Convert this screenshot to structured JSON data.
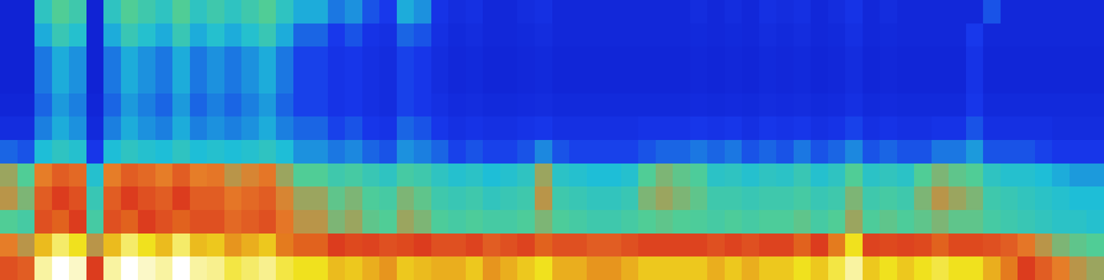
{
  "chart_data": {
    "type": "heatmap",
    "tick_labels": false,
    "color_range": [
      0,
      100
    ],
    "cells": [
      [
        12,
        12,
        45,
        55,
        50,
        12,
        45,
        55,
        50,
        45,
        55,
        45,
        50,
        45,
        50,
        55,
        45,
        38,
        38,
        32,
        35,
        28,
        25,
        38,
        35,
        22,
        18,
        20,
        15,
        15,
        18,
        20,
        15,
        15,
        15,
        15,
        15,
        15,
        15,
        15,
        18,
        15,
        18,
        15,
        20,
        18,
        20,
        15,
        18,
        22,
        15,
        18,
        15,
        15,
        15,
        15,
        15,
        28,
        15,
        15,
        15,
        15,
        15,
        15
      ],
      [
        12,
        12,
        38,
        48,
        42,
        12,
        38,
        48,
        42,
        38,
        48,
        38,
        42,
        38,
        42,
        48,
        38,
        30,
        30,
        25,
        28,
        22,
        20,
        30,
        28,
        20,
        16,
        18,
        15,
        15,
        16,
        18,
        15,
        15,
        15,
        15,
        15,
        15,
        15,
        15,
        16,
        15,
        16,
        15,
        18,
        16,
        18,
        15,
        16,
        20,
        15,
        16,
        15,
        15,
        15,
        15,
        25,
        15,
        15,
        15,
        15,
        15,
        15,
        15
      ],
      [
        12,
        12,
        32,
        38,
        35,
        12,
        32,
        38,
        35,
        32,
        38,
        32,
        35,
        32,
        35,
        38,
        32,
        26,
        26,
        22,
        24,
        20,
        18,
        26,
        24,
        18,
        15,
        16,
        14,
        14,
        15,
        16,
        14,
        14,
        14,
        14,
        14,
        14,
        14,
        14,
        15,
        14,
        15,
        14,
        16,
        15,
        16,
        14,
        15,
        18,
        14,
        15,
        14,
        14,
        14,
        14,
        22,
        14,
        14,
        14,
        14,
        14,
        14,
        14
      ],
      [
        12,
        12,
        32,
        38,
        35,
        12,
        32,
        38,
        35,
        32,
        38,
        32,
        35,
        32,
        35,
        38,
        32,
        26,
        26,
        22,
        24,
        20,
        18,
        26,
        24,
        18,
        15,
        16,
        14,
        14,
        15,
        16,
        14,
        14,
        14,
        14,
        14,
        14,
        14,
        14,
        15,
        14,
        15,
        14,
        16,
        15,
        16,
        14,
        15,
        18,
        14,
        15,
        14,
        14,
        14,
        14,
        22,
        14,
        14,
        14,
        14,
        14,
        14,
        14
      ],
      [
        14,
        14,
        30,
        36,
        33,
        14,
        30,
        36,
        33,
        30,
        36,
        30,
        33,
        30,
        33,
        36,
        30,
        26,
        26,
        22,
        24,
        20,
        18,
        26,
        24,
        20,
        17,
        18,
        16,
        16,
        17,
        18,
        16,
        16,
        16,
        16,
        16,
        16,
        16,
        16,
        17,
        16,
        17,
        16,
        18,
        17,
        18,
        16,
        17,
        20,
        16,
        17,
        16,
        16,
        16,
        16,
        24,
        16,
        16,
        16,
        16,
        16,
        16,
        16
      ],
      [
        18,
        18,
        33,
        38,
        35,
        16,
        33,
        38,
        35,
        33,
        38,
        33,
        35,
        33,
        35,
        38,
        33,
        30,
        30,
        26,
        28,
        24,
        22,
        30,
        28,
        24,
        20,
        22,
        20,
        20,
        22,
        24,
        20,
        20,
        20,
        20,
        20,
        22,
        22,
        22,
        24,
        22,
        24,
        20,
        24,
        22,
        24,
        20,
        22,
        26,
        20,
        22,
        20,
        20,
        22,
        22,
        28,
        20,
        20,
        20,
        20,
        18,
        18,
        18
      ],
      [
        30,
        28,
        40,
        45,
        42,
        24,
        40,
        45,
        42,
        40,
        45,
        40,
        42,
        40,
        42,
        45,
        40,
        35,
        35,
        32,
        34,
        30,
        28,
        35,
        33,
        30,
        26,
        28,
        26,
        26,
        28,
        34,
        28,
        26,
        26,
        26,
        26,
        28,
        30,
        30,
        32,
        30,
        32,
        28,
        30,
        28,
        32,
        28,
        30,
        34,
        28,
        30,
        28,
        28,
        32,
        32,
        36,
        28,
        28,
        28,
        26,
        24,
        24,
        24
      ],
      [
        60,
        55,
        65,
        70,
        68,
        42,
        65,
        70,
        68,
        65,
        70,
        65,
        66,
        62,
        64,
        66,
        60,
        55,
        55,
        50,
        52,
        48,
        45,
        52,
        50,
        45,
        42,
        44,
        40,
        42,
        45,
        60,
        44,
        42,
        40,
        40,
        42,
        55,
        58,
        56,
        54,
        44,
        45,
        42,
        45,
        44,
        48,
        42,
        45,
        55,
        44,
        46,
        44,
        55,
        58,
        56,
        55,
        45,
        42,
        42,
        40,
        38,
        36,
        36
      ],
      [
        62,
        58,
        70,
        75,
        72,
        48,
        70,
        75,
        72,
        70,
        75,
        70,
        70,
        66,
        68,
        70,
        64,
        60,
        60,
        56,
        58,
        54,
        52,
        58,
        56,
        50,
        48,
        50,
        46,
        48,
        50,
        62,
        50,
        48,
        46,
        46,
        48,
        58,
        60,
        58,
        56,
        50,
        50,
        48,
        50,
        50,
        52,
        48,
        50,
        58,
        50,
        52,
        50,
        58,
        62,
        60,
        58,
        50,
        48,
        46,
        44,
        42,
        40,
        40
      ],
      [
        55,
        52,
        72,
        78,
        75,
        52,
        72,
        78,
        75,
        72,
        78,
        72,
        72,
        68,
        70,
        72,
        66,
        62,
        62,
        58,
        60,
        56,
        55,
        60,
        58,
        54,
        52,
        54,
        52,
        52,
        54,
        58,
        54,
        52,
        50,
        50,
        52,
        55,
        56,
        55,
        54,
        52,
        54,
        52,
        54,
        54,
        56,
        52,
        55,
        60,
        54,
        56,
        54,
        56,
        58,
        56,
        56,
        52,
        50,
        48,
        46,
        44,
        44,
        42
      ],
      [
        65,
        62,
        85,
        92,
        88,
        62,
        85,
        92,
        88,
        85,
        92,
        85,
        86,
        82,
        84,
        86,
        80,
        78,
        78,
        75,
        76,
        74,
        72,
        76,
        75,
        72,
        72,
        74,
        70,
        72,
        74,
        78,
        72,
        72,
        70,
        70,
        72,
        74,
        74,
        74,
        74,
        72,
        74,
        72,
        74,
        74,
        78,
        75,
        80,
        88,
        74,
        76,
        74,
        76,
        78,
        76,
        76,
        72,
        70,
        66,
        62,
        58,
        56,
        55
      ],
      [
        72,
        70,
        95,
        100,
        97,
        75,
        95,
        100,
        97,
        95,
        100,
        95,
        94,
        90,
        92,
        94,
        90,
        88,
        88,
        85,
        86,
        84,
        82,
        86,
        85,
        84,
        84,
        86,
        82,
        84,
        86,
        88,
        84,
        84,
        82,
        82,
        84,
        86,
        86,
        86,
        86,
        84,
        86,
        84,
        86,
        86,
        88,
        86,
        90,
        95,
        86,
        88,
        86,
        88,
        90,
        88,
        88,
        84,
        80,
        75,
        70,
        65,
        62,
        60
      ]
    ]
  }
}
